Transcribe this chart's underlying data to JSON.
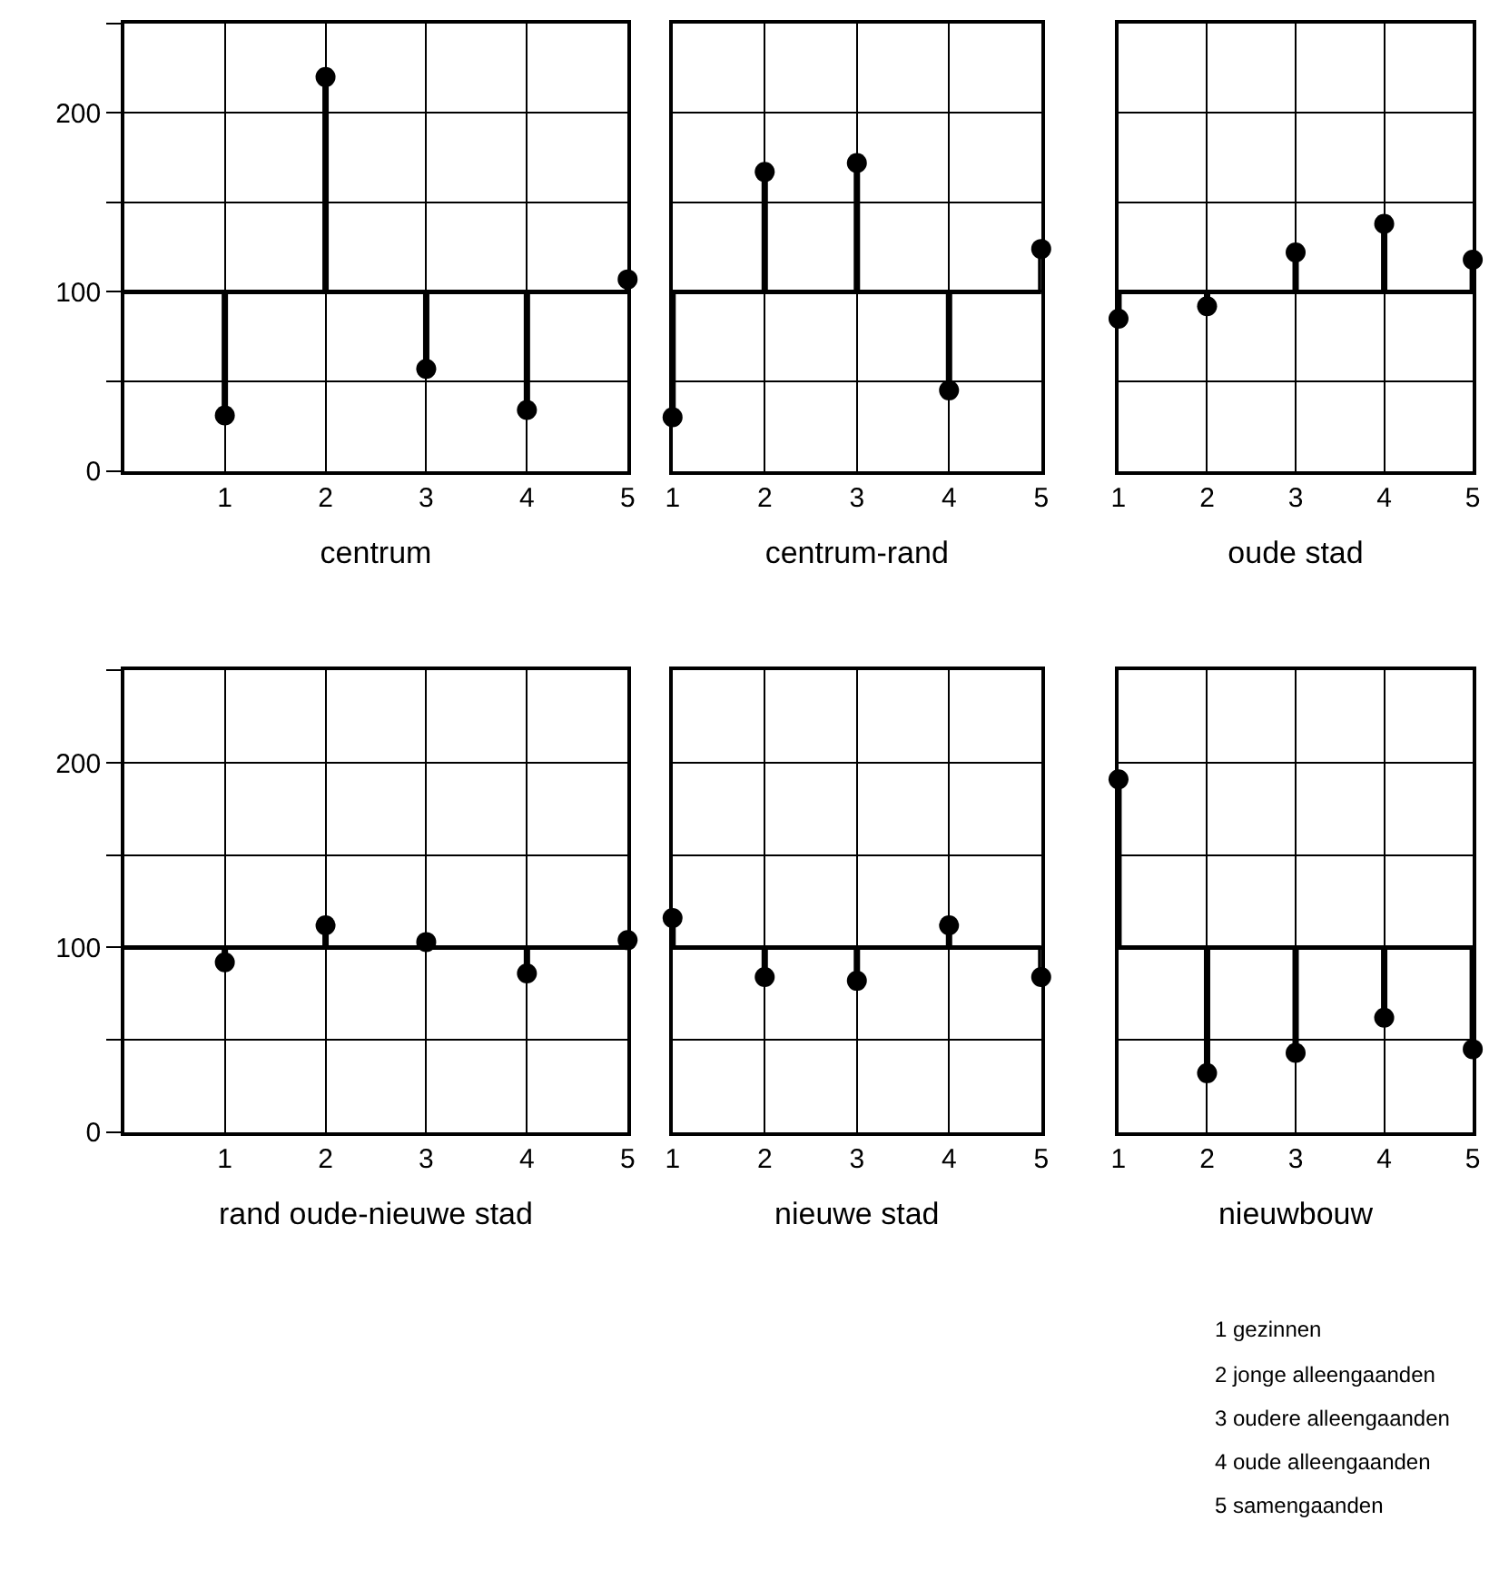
{
  "chart_data": [
    {
      "type": "lollipop",
      "xlabel": "centrum",
      "x": [
        1,
        2,
        3,
        4,
        5
      ],
      "values": [
        31,
        220,
        57,
        34,
        107
      ],
      "errors": [
        [
          31,
          100
        ],
        [
          100,
          220
        ],
        [
          57,
          100
        ],
        [
          34,
          100
        ],
        [
          100,
          107
        ]
      ],
      "color": "#000000",
      "xlim": [
        0,
        5
      ],
      "xticks": [
        1,
        2,
        3,
        4,
        5
      ],
      "ylim": [
        0,
        250
      ],
      "yticks": [
        0,
        {
          "value": 50,
          "label": null
        },
        100,
        {
          "value": 150,
          "label": null
        },
        200,
        {
          "value": 250,
          "label": null
        }
      ],
      "grid": true,
      "marker": "circle",
      "ref_lines": [
        {
          "axis": "y",
          "value": 100,
          "label": null
        }
      ]
    },
    {
      "type": "lollipop",
      "xlabel": "centrum-rand",
      "x": [
        1,
        2,
        3,
        4,
        5
      ],
      "values": [
        30,
        167,
        172,
        45,
        124
      ],
      "errors": [
        [
          30,
          100
        ],
        [
          100,
          167
        ],
        [
          100,
          172
        ],
        [
          45,
          100
        ],
        [
          100,
          124
        ]
      ],
      "color": "#000000",
      "xlim": [
        1,
        5
      ],
      "xticks": [
        1,
        2,
        3,
        4,
        5
      ],
      "ylim": [
        0,
        250
      ],
      "yticks": [
        {
          "value": 0,
          "label": null
        },
        {
          "value": 50,
          "label": null
        },
        {
          "value": 100,
          "label": null
        },
        {
          "value": 150,
          "label": null
        },
        {
          "value": 200,
          "label": null
        },
        {
          "value": 250,
          "label": null
        }
      ],
      "grid": true,
      "marker": "circle",
      "tick_labels": "x",
      "ref_lines": [
        {
          "axis": "y",
          "value": 100,
          "label": null
        }
      ]
    },
    {
      "type": "lollipop",
      "xlabel": "oude stad",
      "x": [
        1,
        2,
        3,
        4,
        5
      ],
      "values": [
        85,
        92,
        122,
        138,
        118
      ],
      "errors": [
        [
          85,
          100
        ],
        [
          92,
          100
        ],
        [
          100,
          122
        ],
        [
          100,
          138
        ],
        [
          100,
          118
        ]
      ],
      "color": "#000000",
      "xlim": [
        1,
        5
      ],
      "xticks": [
        1,
        2,
        3,
        4,
        5
      ],
      "ylim": [
        0,
        250
      ],
      "yticks": [
        {
          "value": 0,
          "label": null
        },
        {
          "value": 50,
          "label": null
        },
        {
          "value": 100,
          "label": null
        },
        {
          "value": 150,
          "label": null
        },
        {
          "value": 200,
          "label": null
        },
        {
          "value": 250,
          "label": null
        }
      ],
      "grid": true,
      "marker": "circle",
      "tick_labels": "x",
      "ref_lines": [
        {
          "axis": "y",
          "value": 100,
          "label": null
        }
      ]
    },
    {
      "type": "lollipop",
      "xlabel": "rand oude-nieuwe stad",
      "x": [
        1,
        2,
        3,
        4,
        5
      ],
      "values": [
        92,
        112,
        103,
        86,
        104
      ],
      "errors": [
        [
          92,
          100
        ],
        [
          100,
          112
        ],
        [
          100,
          103
        ],
        [
          86,
          100
        ],
        [
          100,
          104
        ]
      ],
      "color": "#000000",
      "xlim": [
        0,
        5
      ],
      "xticks": [
        1,
        2,
        3,
        4,
        5
      ],
      "ylim": [
        0,
        250
      ],
      "yticks": [
        0,
        {
          "value": 50,
          "label": null
        },
        100,
        {
          "value": 150,
          "label": null
        },
        200,
        {
          "value": 250,
          "label": null
        }
      ],
      "grid": true,
      "marker": "circle",
      "ref_lines": [
        {
          "axis": "y",
          "value": 100,
          "label": null
        }
      ]
    },
    {
      "type": "lollipop",
      "xlabel": "nieuwe stad",
      "x": [
        1,
        2,
        3,
        4,
        5
      ],
      "values": [
        116,
        84,
        82,
        112,
        84
      ],
      "errors": [
        [
          100,
          116
        ],
        [
          84,
          100
        ],
        [
          82,
          100
        ],
        [
          100,
          112
        ],
        [
          84,
          100
        ]
      ],
      "color": "#000000",
      "xlim": [
        1,
        5
      ],
      "xticks": [
        1,
        2,
        3,
        4,
        5
      ],
      "ylim": [
        0,
        250
      ],
      "yticks": [
        {
          "value": 0,
          "label": null
        },
        {
          "value": 50,
          "label": null
        },
        {
          "value": 100,
          "label": null
        },
        {
          "value": 150,
          "label": null
        },
        {
          "value": 200,
          "label": null
        },
        {
          "value": 250,
          "label": null
        }
      ],
      "grid": true,
      "marker": "circle",
      "tick_labels": "x",
      "ref_lines": [
        {
          "axis": "y",
          "value": 100,
          "label": null
        }
      ]
    },
    {
      "type": "lollipop",
      "xlabel": "nieuwbouw",
      "x": [
        1,
        2,
        3,
        4,
        5
      ],
      "values": [
        191,
        32,
        43,
        62,
        45
      ],
      "errors": [
        [
          100,
          191
        ],
        [
          32,
          100
        ],
        [
          43,
          100
        ],
        [
          62,
          100
        ],
        [
          45,
          100
        ]
      ],
      "color": "#000000",
      "xlim": [
        1,
        5
      ],
      "xticks": [
        1,
        2,
        3,
        4,
        5
      ],
      "ylim": [
        0,
        250
      ],
      "yticks": [
        {
          "value": 0,
          "label": null
        },
        {
          "value": 50,
          "label": null
        },
        {
          "value": 100,
          "label": null
        },
        {
          "value": 150,
          "label": null
        },
        {
          "value": 200,
          "label": null
        },
        {
          "value": 250,
          "label": null
        }
      ],
      "grid": true,
      "marker": "circle",
      "tick_labels": "x",
      "ref_lines": [
        {
          "axis": "y",
          "value": 100,
          "label": null
        }
      ],
      "annotations": [
        "1 gezinnen",
        "2 jonge alleengaanden",
        "3 oudere alleengaanden",
        "4 oude alleengaanden",
        "5 samengaanden"
      ]
    }
  ]
}
